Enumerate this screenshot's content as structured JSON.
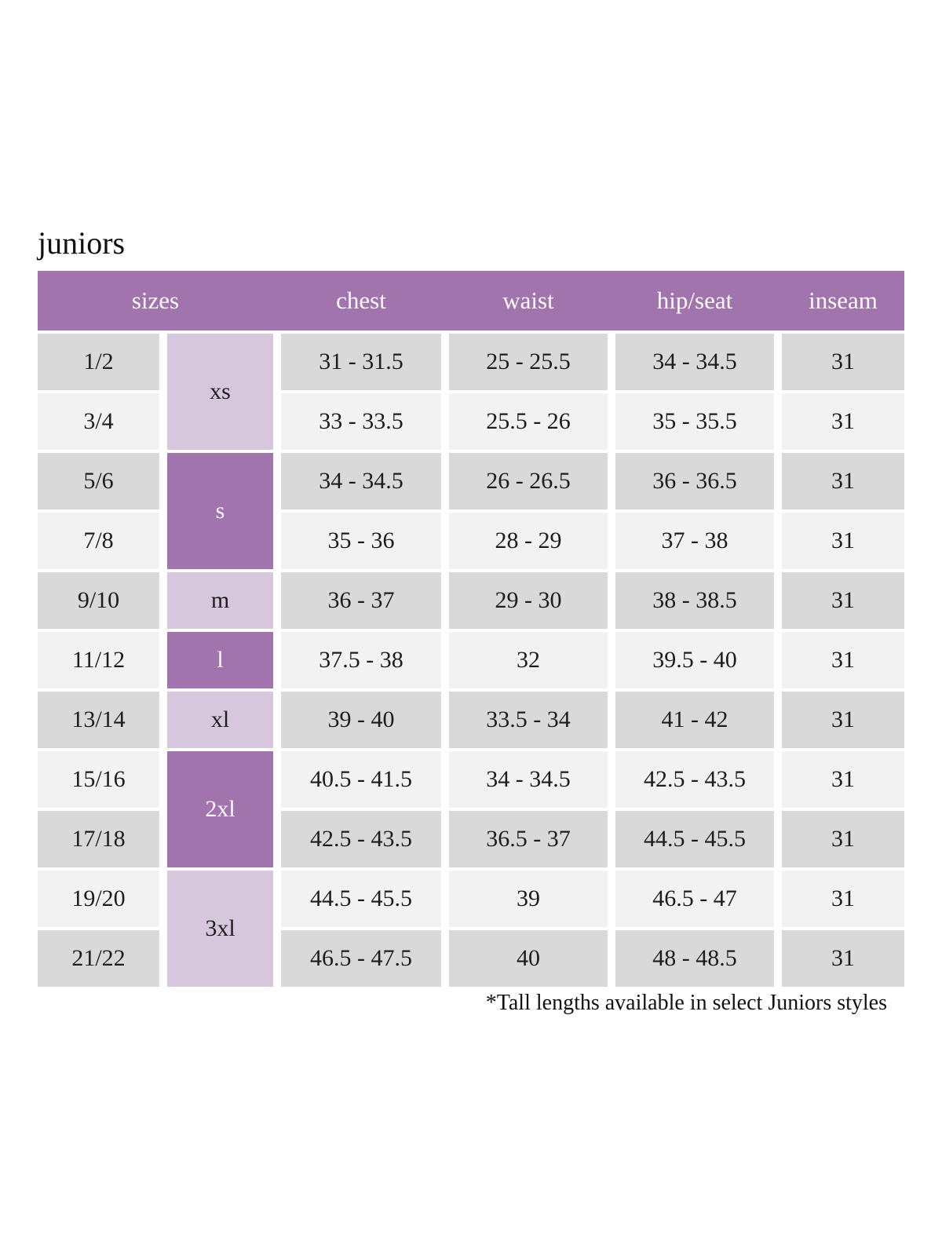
{
  "page": {
    "title": "juniors",
    "footnote": "*Tall lengths available in select Juniors styles"
  },
  "colors": {
    "header_purple": "#a274ae",
    "light_purple": "#d6c7dd",
    "row_gray": "#d9d9d9",
    "row_light": "#f2f2f2",
    "header_text": "#ffffff",
    "body_text": "#1d1d1d"
  },
  "table": {
    "column_headers": [
      "sizes",
      "chest",
      "waist",
      "hip/seat",
      "inseam"
    ],
    "size_groups": [
      {
        "label": "xs",
        "rows_spanned": 2,
        "shade": "light"
      },
      {
        "label": "s",
        "rows_spanned": 2,
        "shade": "dark"
      },
      {
        "label": "m",
        "rows_spanned": 1,
        "shade": "light"
      },
      {
        "label": "l",
        "rows_spanned": 1,
        "shade": "dark"
      },
      {
        "label": "xl",
        "rows_spanned": 1,
        "shade": "light"
      },
      {
        "label": "2xl",
        "rows_spanned": 2,
        "shade": "dark"
      },
      {
        "label": "3xl",
        "rows_spanned": 2,
        "shade": "light"
      }
    ],
    "rows": [
      {
        "size": "1/2",
        "chest": "31 - 31.5",
        "waist": "25 - 25.5",
        "hip_seat": "34 - 34.5",
        "inseam": "31"
      },
      {
        "size": "3/4",
        "chest": "33 - 33.5",
        "waist": "25.5 - 26",
        "hip_seat": "35 - 35.5",
        "inseam": "31"
      },
      {
        "size": "5/6",
        "chest": "34 - 34.5",
        "waist": "26 - 26.5",
        "hip_seat": "36 - 36.5",
        "inseam": "31"
      },
      {
        "size": "7/8",
        "chest": "35 - 36",
        "waist": "28 - 29",
        "hip_seat": "37 - 38",
        "inseam": "31"
      },
      {
        "size": "9/10",
        "chest": "36 - 37",
        "waist": "29 - 30",
        "hip_seat": "38 - 38.5",
        "inseam": "31"
      },
      {
        "size": "11/12",
        "chest": "37.5 - 38",
        "waist": "32",
        "hip_seat": "39.5 - 40",
        "inseam": "31"
      },
      {
        "size": "13/14",
        "chest": "39 - 40",
        "waist": "33.5 - 34",
        "hip_seat": "41 - 42",
        "inseam": "31"
      },
      {
        "size": "15/16",
        "chest": "40.5 - 41.5",
        "waist": "34 - 34.5",
        "hip_seat": "42.5 - 43.5",
        "inseam": "31"
      },
      {
        "size": "17/18",
        "chest": "42.5 - 43.5",
        "waist": "36.5 - 37",
        "hip_seat": "44.5 - 45.5",
        "inseam": "31"
      },
      {
        "size": "19/20",
        "chest": "44.5 - 45.5",
        "waist": "39",
        "hip_seat": "46.5 - 47",
        "inseam": "31"
      },
      {
        "size": "21/22",
        "chest": "46.5 - 47.5",
        "waist": "40",
        "hip_seat": "48 - 48.5",
        "inseam": "31"
      }
    ]
  }
}
